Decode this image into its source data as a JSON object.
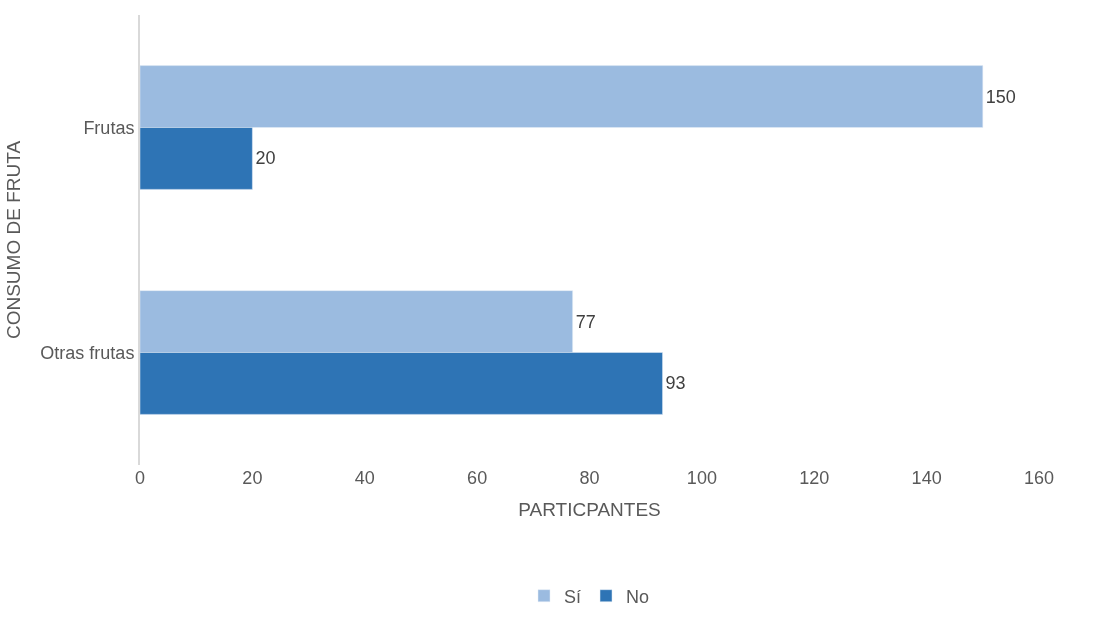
{
  "chart_data": {
    "type": "bar",
    "orientation": "horizontal",
    "categories": [
      "Frutas",
      "Otras frutas"
    ],
    "series": [
      {
        "name": "Sí",
        "color": "#9bbbe0",
        "values": [
          150,
          77
        ]
      },
      {
        "name": "No",
        "color": "#2e74b5",
        "values": [
          20,
          93
        ]
      }
    ],
    "xlabel": "PARTICPANTES",
    "ylabel": "CONSUMO DE FRUTA",
    "xlim": [
      0,
      160
    ],
    "xticks": [
      0,
      20,
      40,
      60,
      80,
      100,
      120,
      140,
      160
    ],
    "legend": "bottom",
    "data_labels": true
  }
}
